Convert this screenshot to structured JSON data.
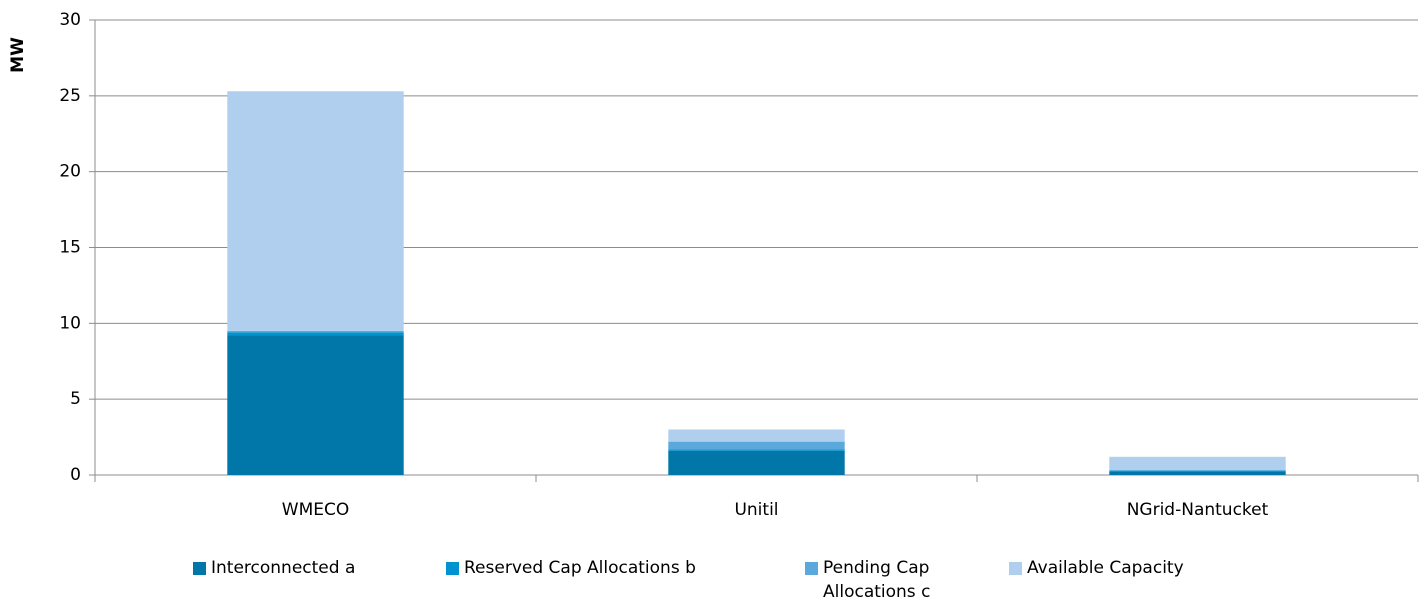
{
  "chart_data": {
    "type": "stacked_bar",
    "y_label": "MW",
    "categories": [
      "WMECO",
      "Unitil",
      "NGrid-Nantucket"
    ],
    "series": [
      {
        "name": "Interconnected a",
        "color": "#0077a8",
        "values": [
          9.2,
          1.6,
          0.2
        ]
      },
      {
        "name": "Reserved Cap Allocations b",
        "color": "#0093cf",
        "values": [
          0.2,
          0.1,
          0.1
        ]
      },
      {
        "name": "Pending Cap Allocations c",
        "color": "#5ba9dc",
        "values": [
          0.1,
          0.5,
          0
        ]
      },
      {
        "name": "Available Capacity",
        "color": "#b0cfee",
        "values": [
          15.8,
          0.8,
          0.9
        ]
      }
    ],
    "ylim": [
      0,
      30
    ],
    "yticks": [
      0,
      5,
      10,
      15,
      20,
      25,
      30
    ],
    "grid": true
  }
}
